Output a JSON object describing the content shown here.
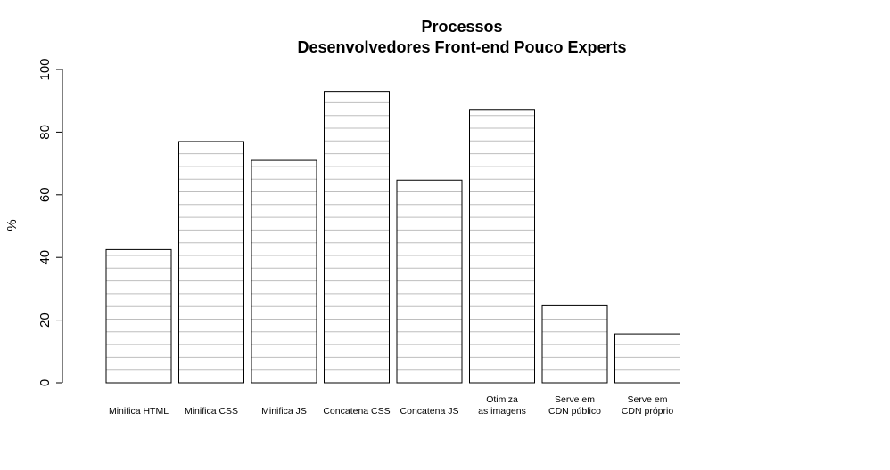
{
  "chart_data": {
    "type": "bar",
    "title": "Processos",
    "subtitle": "Desenvolvedores Front-end Pouco Experts",
    "xlabel": "",
    "ylabel": "%",
    "ylim": [
      0,
      100
    ],
    "yticks": [
      "0",
      "20",
      "40",
      "60",
      "80",
      "100"
    ],
    "categories": [
      [
        "Minifica HTML"
      ],
      [
        "Minifica CSS"
      ],
      [
        "Minifica JS"
      ],
      [
        "Concatena CSS"
      ],
      [
        "Concatena JS"
      ],
      [
        "Otimiza",
        "as imagens"
      ],
      [
        "Serve em",
        "CDN público"
      ],
      [
        "Serve em",
        "CDN próprio"
      ]
    ],
    "values": [
      42.5,
      77,
      71,
      93,
      64.7,
      87,
      24.6,
      15.6
    ],
    "bar_fill": "#ffffff",
    "bar_stroke": "#000000",
    "hatch_color": "#bebebe",
    "grid": false
  }
}
